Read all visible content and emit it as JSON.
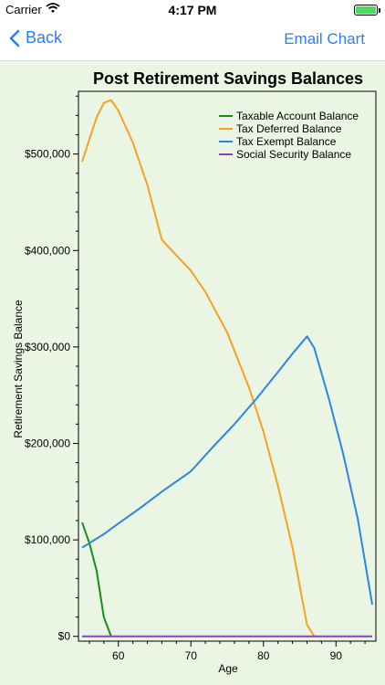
{
  "status": {
    "carrier": "Carrier",
    "time": "4:17 PM"
  },
  "nav": {
    "back_label": "Back",
    "email_label": "Email Chart"
  },
  "colors": {
    "accent": "#2a7ff2",
    "chart_bg": "#ebf5e3"
  },
  "chart_data": {
    "type": "line",
    "title": "Post Retirement Savings Balances",
    "xlabel": "Age",
    "ylabel": "Retirement Savings Balance",
    "xlim": [
      54.5,
      95.5
    ],
    "ylim": [
      -5000,
      565000
    ],
    "x_ticks": [
      60,
      70,
      80,
      90
    ],
    "y_ticks": [
      0,
      100000,
      200000,
      300000,
      400000,
      500000
    ],
    "y_tick_labels": [
      "$0",
      "$100,000",
      "$200,000",
      "$300,000",
      "$400,000",
      "$500,000"
    ],
    "legend_position": "top-right",
    "series": [
      {
        "name": "Taxable Account Balance",
        "color": "#1a8c1a",
        "points": [
          [
            55,
            118000
          ],
          [
            56,
            97000
          ],
          [
            57,
            68000
          ],
          [
            58,
            20000
          ],
          [
            59,
            0
          ]
        ]
      },
      {
        "name": "Tax Deferred Balance",
        "color": "#f5a21f",
        "points": [
          [
            55,
            492000
          ],
          [
            56,
            515000
          ],
          [
            57,
            538000
          ],
          [
            58,
            553000
          ],
          [
            59,
            556000
          ],
          [
            60,
            545000
          ],
          [
            62,
            512000
          ],
          [
            64,
            468000
          ],
          [
            66,
            411000
          ],
          [
            70,
            379000
          ],
          [
            72,
            357000
          ],
          [
            75,
            315000
          ],
          [
            78,
            258000
          ],
          [
            80,
            212000
          ],
          [
            82,
            156000
          ],
          [
            84,
            92000
          ],
          [
            86,
            12000
          ],
          [
            87,
            0
          ]
        ]
      },
      {
        "name": "Tax Exempt Balance",
        "color": "#2a86e0",
        "points": [
          [
            55,
            92000
          ],
          [
            58,
            106000
          ],
          [
            60,
            117000
          ],
          [
            63,
            133000
          ],
          [
            66,
            150000
          ],
          [
            70,
            171000
          ],
          [
            73,
            196000
          ],
          [
            76,
            220000
          ],
          [
            79,
            246000
          ],
          [
            82,
            274000
          ],
          [
            84,
            293000
          ],
          [
            86,
            311000
          ],
          [
            87,
            299000
          ],
          [
            89,
            247000
          ],
          [
            91,
            189000
          ],
          [
            93,
            122000
          ],
          [
            95,
            33000
          ]
        ]
      },
      {
        "name": "Social Security Balance",
        "color": "#8a3fd1",
        "points": [
          [
            55,
            0
          ],
          [
            95,
            0
          ]
        ]
      }
    ]
  }
}
